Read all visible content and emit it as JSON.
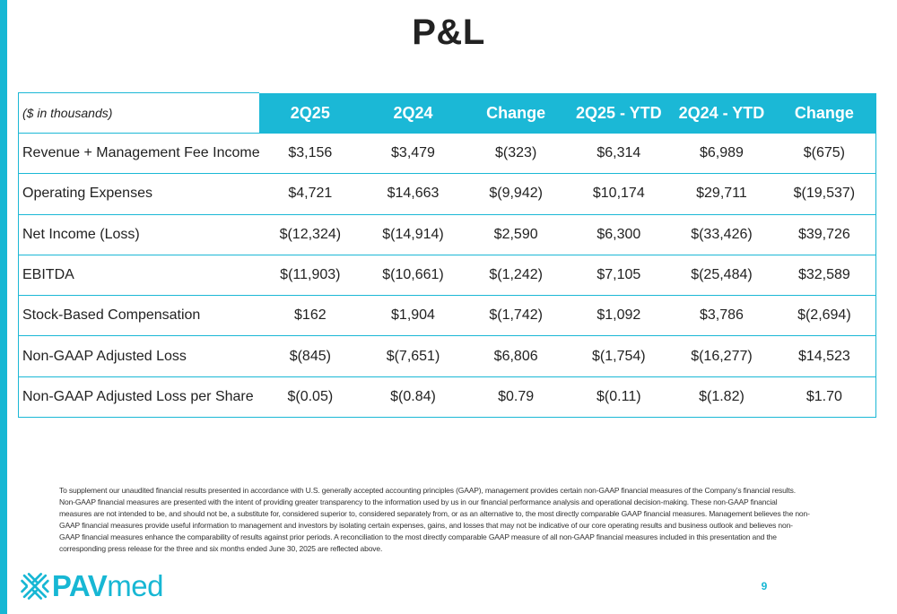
{
  "slide": {
    "title": "P&L",
    "page_number": "9",
    "accent_color": "#1bb8d6"
  },
  "table": {
    "unit_label": "($ in thousands)",
    "headers": [
      "2Q25",
      "2Q24",
      "Change",
      "2Q25 - YTD",
      "2Q24 - YTD",
      "Change"
    ],
    "rows": [
      {
        "label": "Revenue + Management Fee Income",
        "values": [
          "$3,156",
          "$3,479",
          "$(323)",
          "$6,314",
          "$6,989",
          "$(675)"
        ]
      },
      {
        "label": "Operating Expenses",
        "values": [
          "$4,721",
          "$14,663",
          "$(9,942)",
          "$10,174",
          "$29,711",
          "$(19,537)"
        ]
      },
      {
        "label": "Net Income (Loss)",
        "values": [
          "$(12,324)",
          "$(14,914)",
          "$2,590",
          "$6,300",
          "$(33,426)",
          "$39,726"
        ]
      },
      {
        "label": "EBITDA",
        "values": [
          "$(11,903)",
          "$(10,661)",
          "$(1,242)",
          "$7,105",
          "$(25,484)",
          "$32,589"
        ]
      },
      {
        "label": "Stock-Based Compensation",
        "values": [
          "$162",
          "$1,904",
          "$(1,742)",
          "$1,092",
          "$3,786",
          "$(2,694)"
        ]
      },
      {
        "label": "Non-GAAP Adjusted Loss",
        "values": [
          "$(845)",
          "$(7,651)",
          "$6,806",
          "$(1,754)",
          "$(16,277)",
          "$14,523"
        ]
      },
      {
        "label": "Non-GAAP Adjusted Loss per Share",
        "values": [
          "$(0.05)",
          "$(0.84)",
          "$0.79",
          "$(0.11)",
          "$(1.82)",
          "$1.70"
        ]
      }
    ]
  },
  "footnote": "To supplement our unaudited financial results presented in accordance with U.S. generally accepted accounting principles (GAAP), management provides certain non-GAAP financial measures of the Company’s financial results. Non-GAAP financial measures are presented with the intent of providing greater transparency to the information used by us in our financial performance analysis and operational decision-making. These non-GAAP financial measures are not intended to be, and should not be, a substitute for, considered superior to, considered separately from, or as an alternative to, the most directly comparable GAAP financial measures. Management believes the non-GAAP financial measures provide useful information to management and investors by isolating certain expenses, gains, and losses that may not be indicative of our core operating results and business outlook and believes non-GAAP financial measures enhance the comparability of results against prior periods. A reconciliation to the most directly comparable GAAP measure of all non-GAAP financial measures included in this presentation and the corresponding press release for the three and six months ended June 30, 2025 are reflected above.",
  "logo": {
    "text_pav": "PAV",
    "text_med": "med",
    "icon": "pavmed-x-logo-icon"
  }
}
